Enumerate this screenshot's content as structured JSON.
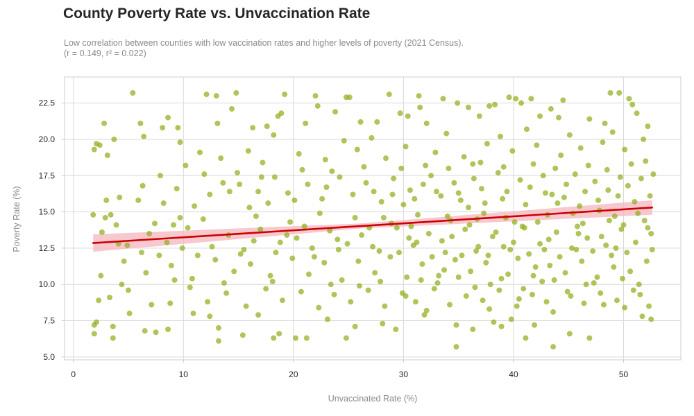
{
  "header": {
    "title": "County Poverty Rate vs. Unvaccination Rate",
    "subtitle_line1": "Low correlation between counties with low vaccination rates and higher levels of poverty (2021 Census).",
    "subtitle_line2": "(r = 0.149, r² = 0.022)"
  },
  "chart_data": {
    "type": "scatter",
    "xlabel": "Unvaccinated Rate (%)",
    "ylabel": "Poverty Rate (%)",
    "xlim": [
      -0.8,
      55.2
    ],
    "ylim": [
      4.8,
      24.3
    ],
    "xticks": [
      0,
      10,
      20,
      30,
      40,
      50
    ],
    "yticks": [
      5.0,
      7.5,
      10.0,
      12.5,
      15.0,
      17.5,
      20.0,
      22.5
    ],
    "xtick_labels": [
      "0",
      "10",
      "20",
      "30",
      "40",
      "50"
    ],
    "ytick_labels": [
      "5.0",
      "7.5",
      "10.0",
      "12.5",
      "15.0",
      "17.5",
      "20.0",
      "22.5"
    ],
    "grid": true,
    "colors": {
      "points": "#8fae1b",
      "regression": "#cc0000",
      "ci_band": "#f4b6bd",
      "grid": "#d9d9d9",
      "frame": "#cccccc"
    },
    "regression": {
      "start": [
        1.8,
        12.85
      ],
      "end": [
        52.6,
        15.3
      ]
    },
    "ci_band": {
      "upper": [
        [
          1.8,
          13.45
        ],
        [
          26.0,
          14.2
        ],
        [
          52.6,
          15.8
        ]
      ],
      "lower": [
        [
          1.8,
          12.25
        ],
        [
          26.0,
          13.85
        ],
        [
          52.6,
          14.8
        ]
      ]
    },
    "points": [
      [
        5.4,
        23.2
      ],
      [
        12.1,
        23.1
      ],
      [
        13.0,
        23.0
      ],
      [
        14.8,
        23.2
      ],
      [
        19.2,
        23.1
      ],
      [
        22.0,
        23.0
      ],
      [
        24.8,
        22.9
      ],
      [
        25.1,
        22.9
      ],
      [
        28.7,
        23.1
      ],
      [
        31.4,
        23.0
      ],
      [
        39.6,
        22.9
      ],
      [
        40.2,
        22.8
      ],
      [
        44.5,
        22.7
      ],
      [
        48.8,
        23.2
      ],
      [
        49.6,
        23.2
      ],
      [
        50.5,
        22.8
      ],
      [
        1.9,
        19.3
      ],
      [
        2.1,
        19.7
      ],
      [
        2.4,
        19.6
      ],
      [
        2.8,
        21.1
      ],
      [
        3.7,
        20.0
      ],
      [
        6.1,
        21.1
      ],
      [
        6.4,
        20.2
      ],
      [
        8.1,
        20.8
      ],
      [
        8.6,
        21.5
      ],
      [
        9.5,
        20.8
      ],
      [
        9.7,
        19.8
      ],
      [
        11.5,
        19.1
      ],
      [
        13.1,
        21.1
      ],
      [
        14.4,
        22.1
      ],
      [
        16.3,
        20.8
      ],
      [
        17.6,
        20.9
      ],
      [
        18.2,
        20.3
      ],
      [
        18.6,
        21.6
      ],
      [
        18.9,
        21.8
      ],
      [
        21.1,
        21.1
      ],
      [
        22.2,
        22.3
      ],
      [
        23.8,
        21.9
      ],
      [
        26.1,
        21.2
      ],
      [
        27.6,
        21.2
      ],
      [
        29.7,
        21.8
      ],
      [
        30.4,
        21.6
      ],
      [
        31.5,
        22.2
      ],
      [
        32.1,
        21.1
      ],
      [
        33.6,
        22.8
      ],
      [
        34.9,
        22.5
      ],
      [
        35.9,
        22.2
      ],
      [
        36.9,
        21.6
      ],
      [
        37.8,
        22.3
      ],
      [
        38.3,
        22.4
      ],
      [
        40.7,
        22.5
      ],
      [
        41.6,
        22.8
      ],
      [
        42.4,
        21.6
      ],
      [
        43.4,
        22.1
      ],
      [
        44.1,
        21.5
      ],
      [
        46.9,
        21.4
      ],
      [
        48.3,
        21.1
      ],
      [
        50.8,
        22.4
      ],
      [
        51.2,
        21.8
      ],
      [
        52.2,
        20.9
      ],
      [
        1.8,
        14.8
      ],
      [
        2.9,
        14.6
      ],
      [
        3.4,
        14.8
      ],
      [
        4.2,
        16.0
      ],
      [
        5.9,
        15.8
      ],
      [
        6.3,
        16.8
      ],
      [
        7.4,
        14.2
      ],
      [
        8.2,
        15.6
      ],
      [
        9.7,
        14.6
      ],
      [
        11.0,
        15.4
      ],
      [
        12.4,
        16.2
      ],
      [
        13.6,
        17.0
      ],
      [
        14.2,
        16.4
      ],
      [
        15.1,
        16.9
      ],
      [
        16.0,
        15.3
      ],
      [
        16.8,
        16.4
      ],
      [
        17.7,
        15.6
      ],
      [
        18.3,
        17.4
      ],
      [
        19.5,
        16.3
      ],
      [
        20.1,
        15.8
      ],
      [
        21.3,
        16.9
      ],
      [
        22.6,
        15.9
      ],
      [
        23.0,
        16.7
      ],
      [
        24.2,
        17.4
      ],
      [
        25.4,
        16.2
      ],
      [
        26.6,
        17.0
      ],
      [
        27.3,
        16.4
      ],
      [
        28.0,
        15.7
      ],
      [
        29.1,
        17.3
      ],
      [
        30.6,
        16.5
      ],
      [
        31.8,
        16.9
      ],
      [
        32.5,
        17.5
      ],
      [
        33.4,
        16.1
      ],
      [
        34.6,
        17.0
      ],
      [
        35.2,
        15.8
      ],
      [
        36.4,
        17.3
      ],
      [
        37.1,
        16.6
      ],
      [
        38.6,
        17.7
      ],
      [
        39.4,
        16.4
      ],
      [
        40.6,
        17.2
      ],
      [
        41.5,
        16.7
      ],
      [
        42.7,
        17.5
      ],
      [
        43.5,
        16.2
      ],
      [
        44.8,
        16.9
      ],
      [
        45.6,
        17.6
      ],
      [
        46.5,
        16.4
      ],
      [
        47.4,
        17.1
      ],
      [
        48.6,
        16.5
      ],
      [
        49.7,
        17.4
      ],
      [
        50.4,
        16.8
      ],
      [
        51.6,
        17.3
      ],
      [
        52.4,
        16.1
      ],
      [
        3.1,
        18.9
      ],
      [
        7.9,
        17.5
      ],
      [
        10.2,
        18.2
      ],
      [
        13.4,
        18.7
      ],
      [
        15.9,
        19.2
      ],
      [
        17.2,
        18.4
      ],
      [
        20.5,
        19.0
      ],
      [
        22.9,
        18.6
      ],
      [
        25.8,
        19.3
      ],
      [
        28.4,
        18.7
      ],
      [
        30.2,
        19.5
      ],
      [
        32.9,
        19.1
      ],
      [
        35.5,
        18.8
      ],
      [
        37.6,
        19.7
      ],
      [
        39.9,
        19.2
      ],
      [
        42.1,
        19.6
      ],
      [
        44.3,
        18.9
      ],
      [
        46.1,
        19.4
      ],
      [
        48.1,
        19.8
      ],
      [
        50.1,
        19.3
      ],
      [
        52.0,
        18.5
      ],
      [
        27.1,
        20.1
      ],
      [
        33.9,
        20.4
      ],
      [
        38.8,
        20.2
      ],
      [
        45.1,
        20.3
      ],
      [
        49.0,
        20.5
      ],
      [
        51.8,
        20.0
      ],
      [
        24.6,
        19.9
      ],
      [
        36.3,
        18.3
      ],
      [
        41.2,
        20.7
      ],
      [
        2.6,
        13.6
      ],
      [
        4.9,
        12.7
      ],
      [
        6.9,
        13.5
      ],
      [
        8.5,
        12.9
      ],
      [
        10.4,
        13.9
      ],
      [
        12.6,
        12.6
      ],
      [
        14.1,
        13.4
      ],
      [
        15.5,
        12.4
      ],
      [
        17.0,
        13.8
      ],
      [
        18.8,
        12.9
      ],
      [
        20.3,
        13.2
      ],
      [
        21.7,
        12.5
      ],
      [
        23.3,
        13.7
      ],
      [
        24.9,
        12.8
      ],
      [
        26.2,
        13.4
      ],
      [
        27.8,
        12.3
      ],
      [
        29.4,
        13.9
      ],
      [
        30.9,
        12.7
      ],
      [
        32.3,
        13.5
      ],
      [
        33.8,
        12.2
      ],
      [
        35.6,
        13.8
      ],
      [
        36.8,
        12.6
      ],
      [
        38.1,
        13.3
      ],
      [
        39.7,
        12.4
      ],
      [
        41.0,
        13.9
      ],
      [
        42.4,
        12.8
      ],
      [
        43.9,
        13.6
      ],
      [
        45.3,
        12.5
      ],
      [
        46.7,
        13.2
      ],
      [
        48.4,
        12.7
      ],
      [
        49.8,
        13.8
      ],
      [
        51.1,
        12.9
      ],
      [
        52.5,
        13.5
      ],
      [
        3.9,
        14.1
      ],
      [
        9.1,
        14.1
      ],
      [
        11.8,
        14.5
      ],
      [
        16.6,
        14.7
      ],
      [
        19.7,
        14.3
      ],
      [
        22.4,
        14.9
      ],
      [
        25.6,
        14.6
      ],
      [
        28.9,
        14.2
      ],
      [
        31.3,
        14.8
      ],
      [
        34.3,
        14.4
      ],
      [
        37.3,
        14.9
      ],
      [
        40.1,
        14.3
      ],
      [
        43.1,
        14.8
      ],
      [
        46.3,
        14.2
      ],
      [
        49.2,
        14.7
      ],
      [
        51.9,
        14.4
      ],
      [
        35.9,
        15.3
      ],
      [
        30.0,
        15.5
      ],
      [
        44.0,
        15.6
      ],
      [
        47.8,
        15.1
      ],
      [
        4.6,
        11.6
      ],
      [
        6.6,
        10.8
      ],
      [
        8.9,
        11.3
      ],
      [
        10.8,
        10.4
      ],
      [
        12.9,
        11.7
      ],
      [
        14.6,
        10.9
      ],
      [
        16.1,
        11.4
      ],
      [
        17.9,
        10.6
      ],
      [
        19.9,
        11.8
      ],
      [
        21.4,
        10.7
      ],
      [
        22.8,
        11.5
      ],
      [
        24.4,
        10.3
      ],
      [
        25.9,
        11.6
      ],
      [
        27.4,
        10.8
      ],
      [
        28.8,
        11.9
      ],
      [
        30.3,
        10.5
      ],
      [
        31.7,
        11.4
      ],
      [
        33.2,
        10.6
      ],
      [
        34.7,
        11.7
      ],
      [
        36.1,
        10.9
      ],
      [
        37.5,
        11.5
      ],
      [
        38.9,
        10.4
      ],
      [
        40.4,
        11.8
      ],
      [
        41.8,
        10.6
      ],
      [
        43.3,
        11.3
      ],
      [
        44.7,
        10.8
      ],
      [
        46.2,
        11.6
      ],
      [
        47.6,
        10.5
      ],
      [
        49.1,
        11.2
      ],
      [
        50.6,
        10.9
      ],
      [
        52.1,
        11.6
      ],
      [
        2.3,
        8.9
      ],
      [
        3.3,
        9.1
      ],
      [
        5.0,
        9.6
      ],
      [
        7.1,
        8.6
      ],
      [
        8.8,
        8.7
      ],
      [
        10.6,
        9.8
      ],
      [
        12.2,
        8.8
      ],
      [
        13.9,
        9.4
      ],
      [
        15.7,
        8.5
      ],
      [
        17.5,
        9.7
      ],
      [
        19.0,
        8.9
      ],
      [
        20.7,
        9.5
      ],
      [
        22.3,
        8.4
      ],
      [
        23.7,
        9.3
      ],
      [
        25.2,
        8.8
      ],
      [
        26.8,
        9.6
      ],
      [
        28.3,
        8.5
      ],
      [
        29.9,
        9.4
      ],
      [
        31.1,
        8.8
      ],
      [
        32.8,
        9.7
      ],
      [
        34.2,
        8.6
      ],
      [
        35.7,
        9.2
      ],
      [
        37.2,
        8.9
      ],
      [
        38.7,
        9.6
      ],
      [
        40.3,
        8.5
      ],
      [
        41.7,
        9.3
      ],
      [
        43.0,
        8.8
      ],
      [
        44.9,
        9.5
      ],
      [
        46.4,
        8.7
      ],
      [
        47.9,
        9.4
      ],
      [
        49.4,
        8.9
      ],
      [
        50.9,
        9.6
      ],
      [
        52.3,
        8.5
      ],
      [
        1.9,
        7.2
      ],
      [
        2.1,
        7.4
      ],
      [
        3.6,
        7.1
      ],
      [
        5.1,
        8.0
      ],
      [
        6.5,
        6.8
      ],
      [
        7.5,
        6.7
      ],
      [
        8.6,
        6.9
      ],
      [
        10.9,
        8.0
      ],
      [
        12.4,
        7.8
      ],
      [
        13.2,
        7.0
      ],
      [
        15.4,
        6.5
      ],
      [
        16.8,
        7.9
      ],
      [
        18.2,
        6.3
      ],
      [
        18.7,
        6.6
      ],
      [
        20.2,
        6.3
      ],
      [
        21.2,
        6.3
      ],
      [
        23.1,
        7.6
      ],
      [
        24.8,
        6.3
      ],
      [
        25.6,
        7.1
      ],
      [
        28.1,
        7.3
      ],
      [
        29.3,
        6.9
      ],
      [
        31.9,
        7.9
      ],
      [
        34.8,
        7.2
      ],
      [
        36.3,
        6.9
      ],
      [
        38.2,
        7.4
      ],
      [
        38.9,
        7.1
      ],
      [
        39.8,
        7.6
      ],
      [
        41.9,
        7.2
      ],
      [
        43.6,
        8.1
      ],
      [
        45.1,
        6.6
      ],
      [
        46.9,
        6.3
      ],
      [
        50.1,
        8.4
      ],
      [
        51.7,
        7.8
      ],
      [
        52.5,
        7.6
      ],
      [
        1.9,
        6.6
      ],
      [
        3.6,
        6.3
      ],
      [
        13.2,
        6.1
      ],
      [
        34.8,
        5.7
      ],
      [
        43.6,
        5.7
      ],
      [
        41.1,
        6.3
      ],
      [
        2.5,
        10.6
      ],
      [
        4.1,
        12.8
      ],
      [
        6.2,
        12.2
      ],
      [
        11.3,
        12.0
      ],
      [
        15.2,
        12.1
      ],
      [
        18.4,
        12.2
      ],
      [
        24.1,
        12.4
      ],
      [
        27.2,
        12.6
      ],
      [
        32.6,
        11.9
      ],
      [
        36.6,
        12.3
      ],
      [
        41.4,
        12.1
      ],
      [
        45.7,
        12.4
      ],
      [
        48.9,
        12.0
      ],
      [
        9.9,
        12.5
      ],
      [
        21.9,
        11.9
      ],
      [
        29.6,
        12.2
      ],
      [
        39.1,
        12.6
      ],
      [
        44.2,
        11.9
      ],
      [
        47.2,
        12.3
      ],
      [
        50.3,
        12.2
      ],
      [
        3.0,
        15.8
      ],
      [
        9.4,
        16.6
      ],
      [
        11.9,
        17.6
      ],
      [
        14.9,
        17.7
      ],
      [
        17.1,
        17.4
      ],
      [
        20.8,
        17.9
      ],
      [
        23.5,
        17.8
      ],
      [
        26.4,
        18.1
      ],
      [
        29.8,
        18.0
      ],
      [
        32.0,
        18.2
      ],
      [
        34.1,
        18.0
      ],
      [
        37.0,
        18.4
      ],
      [
        39.1,
        18.1
      ],
      [
        41.8,
        18.3
      ],
      [
        43.8,
        18.0
      ],
      [
        46.8,
        18.2
      ],
      [
        48.5,
        17.9
      ],
      [
        50.7,
        18.3
      ],
      [
        52.7,
        17.6
      ],
      [
        4.4,
        10.0
      ],
      [
        9.2,
        10.3
      ],
      [
        13.7,
        10.1
      ],
      [
        18.1,
        10.2
      ],
      [
        23.4,
        10.0
      ],
      [
        27.9,
        10.2
      ],
      [
        33.1,
        10.1
      ],
      [
        37.9,
        10.0
      ],
      [
        42.6,
        10.2
      ],
      [
        47.3,
        10.1
      ],
      [
        51.4,
        10.0
      ],
      [
        35.0,
        10.5
      ],
      [
        40.9,
        9.7
      ],
      [
        26.0,
        9.9
      ],
      [
        31.6,
        10.3
      ],
      [
        7.8,
        12.0
      ],
      [
        16.4,
        13.0
      ],
      [
        19.4,
        13.4
      ],
      [
        21.0,
        14.0
      ],
      [
        24.0,
        13.1
      ],
      [
        26.9,
        13.9
      ],
      [
        30.5,
        13.2
      ],
      [
        33.5,
        13.0
      ],
      [
        36.0,
        14.1
      ],
      [
        38.4,
        13.6
      ],
      [
        40.8,
        14.0
      ],
      [
        43.2,
        13.1
      ],
      [
        45.8,
        14.0
      ],
      [
        48.0,
        13.3
      ],
      [
        50.0,
        14.1
      ],
      [
        52.2,
        13.9
      ],
      [
        29.0,
        16.2
      ],
      [
        31.0,
        15.9
      ],
      [
        33.0,
        16.4
      ],
      [
        35.0,
        16.3
      ],
      [
        37.4,
        15.6
      ],
      [
        39.0,
        15.9
      ],
      [
        41.1,
        15.5
      ],
      [
        42.9,
        16.3
      ],
      [
        44.6,
        16.0
      ],
      [
        46.0,
        15.4
      ],
      [
        47.7,
        15.8
      ],
      [
        49.5,
        16.1
      ],
      [
        51.0,
        15.7
      ],
      [
        28.2,
        14.6
      ],
      [
        30.7,
        14.0
      ],
      [
        34.0,
        14.7
      ],
      [
        36.7,
        14.5
      ],
      [
        39.3,
        14.6
      ],
      [
        42.2,
        14.3
      ],
      [
        45.4,
        14.9
      ],
      [
        48.7,
        14.4
      ],
      [
        51.3,
        14.9
      ],
      [
        30.2,
        9.2
      ],
      [
        32.1,
        8.2
      ],
      [
        33.7,
        11.0
      ],
      [
        35.3,
        12.0
      ],
      [
        36.5,
        9.8
      ],
      [
        37.8,
        8.3
      ],
      [
        39.5,
        10.7
      ],
      [
        40.5,
        9.0
      ],
      [
        42.0,
        11.2
      ],
      [
        43.7,
        10.3
      ],
      [
        45.2,
        9.2
      ],
      [
        46.6,
        10.0
      ],
      [
        48.2,
        8.6
      ],
      [
        49.9,
        10.4
      ],
      [
        51.5,
        9.3
      ],
      [
        31.2,
        12.9
      ],
      [
        34.4,
        13.3
      ],
      [
        37.7,
        12.0
      ],
      [
        40.0,
        12.9
      ],
      [
        42.8,
        12.4
      ],
      [
        45.9,
        13.5
      ],
      [
        49.3,
        12.5
      ],
      [
        52.6,
        12.4
      ]
    ]
  }
}
